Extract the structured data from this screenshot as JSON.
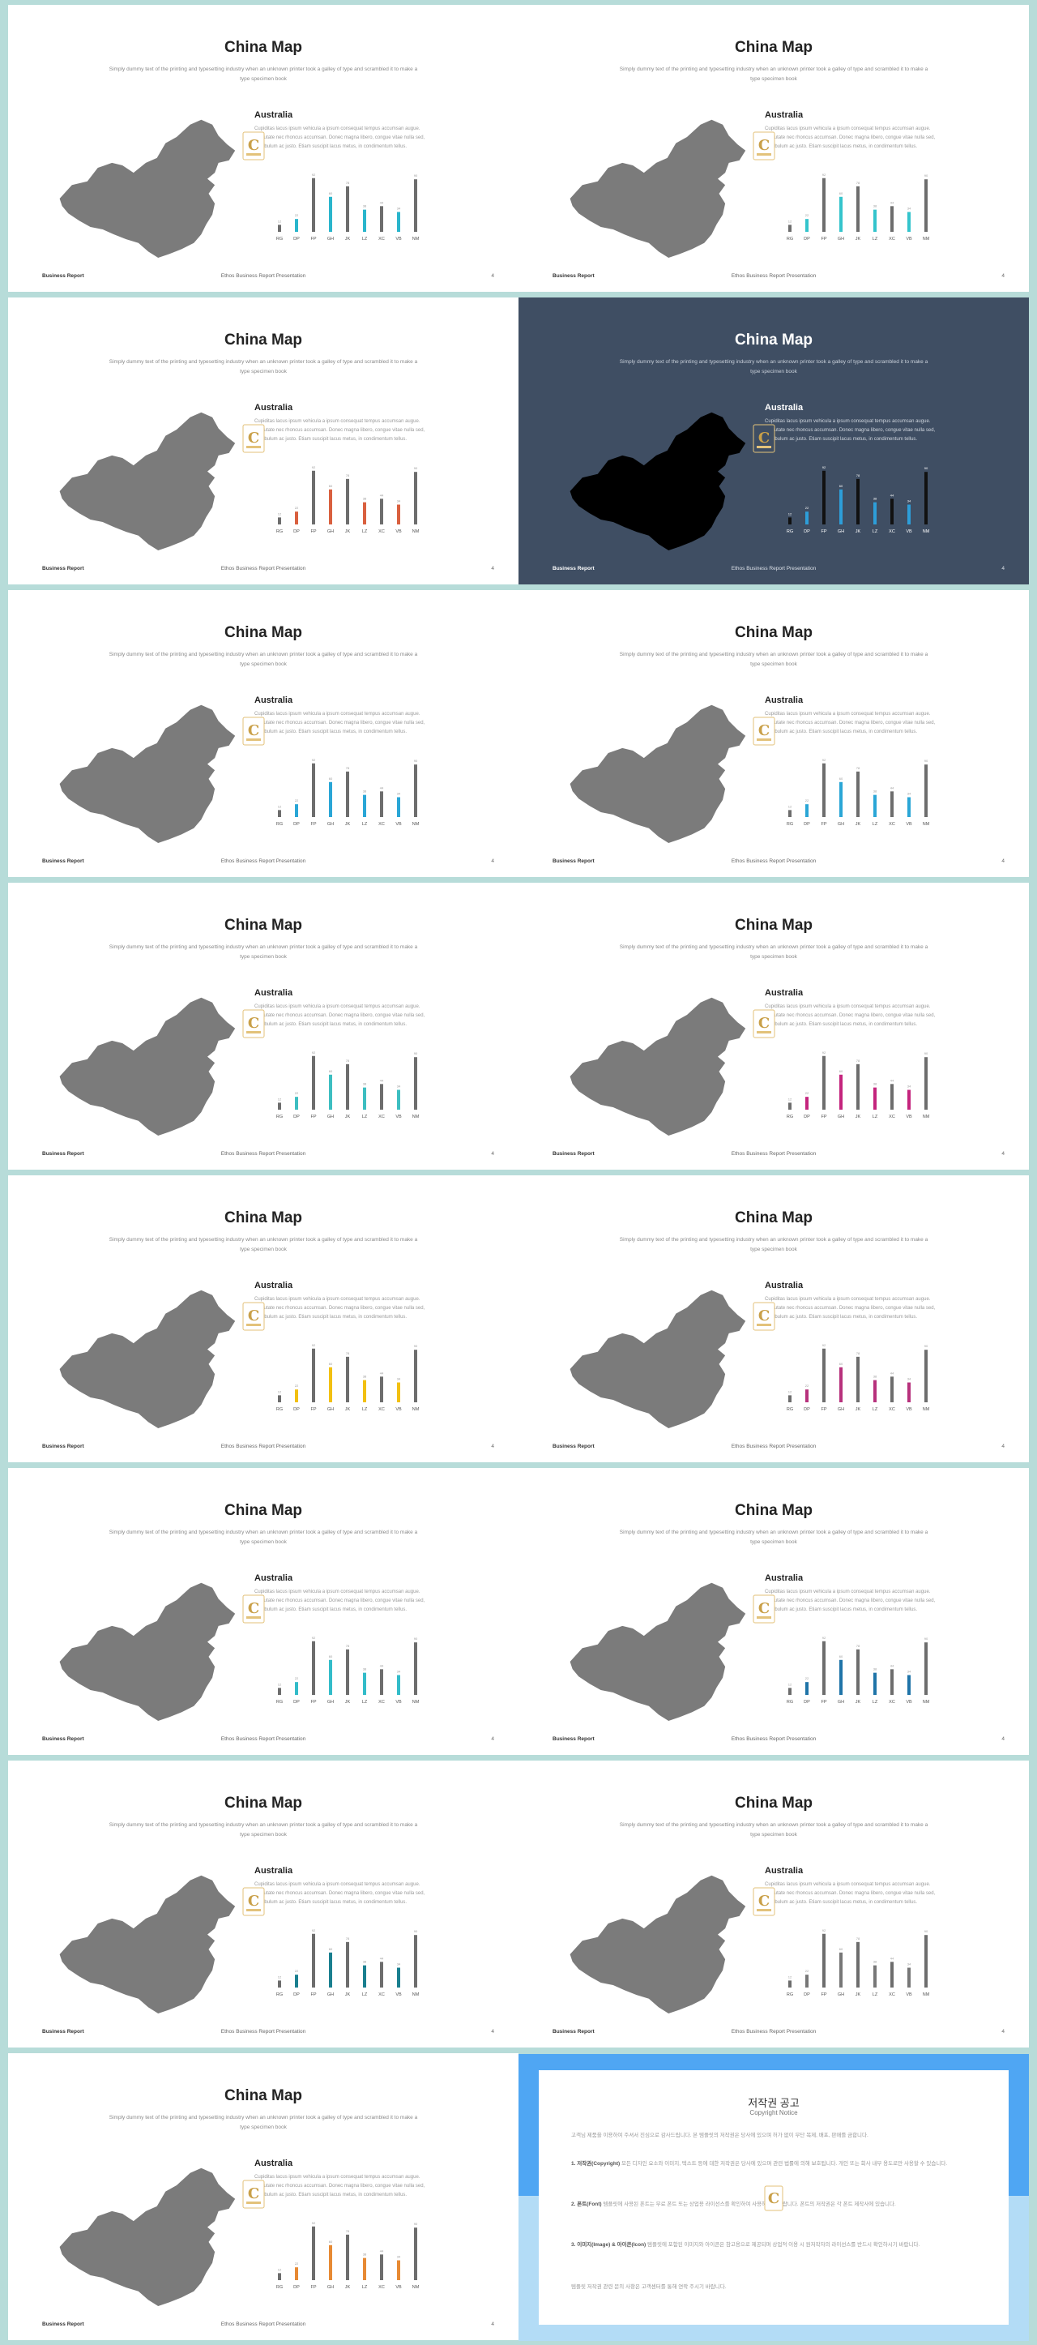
{
  "slide": {
    "title": "China Map",
    "subtitle": "Simply dummy text of the printing and typesetting industry when an unknown printer took a galley of type and scrambled it to make a type specimen book",
    "card_title": "Australia",
    "card_body": "Cupiditas lacus ipsum vehicula a ipsum consequat tempus accumsan augue. Vulputate nec rhoncus accumsan. Donec magna libero, congue vitae nulla sed, vestibulum ac justo. Etiam suscipit lacus metus, in condimentum tellus.",
    "footer_left": "Business Report",
    "footer_center": "Ethos Business Report Presentation",
    "page_number": "4"
  },
  "chart_data": {
    "type": "bar",
    "categories": [
      "RG",
      "DP",
      "FP",
      "GH",
      "JK",
      "LZ",
      "XC",
      "VB",
      "NM"
    ],
    "values": [
      12,
      22,
      92,
      60,
      78,
      38,
      44,
      34,
      90
    ],
    "accent_pattern": [
      false,
      true,
      false,
      true,
      false,
      true,
      false,
      true,
      false
    ],
    "value_labels": [
      "12",
      "22",
      "92",
      "60",
      "78",
      "38",
      "44",
      "34",
      "90"
    ]
  },
  "slides": [
    {
      "accent": "#2ab5cc",
      "dark": false
    },
    {
      "accent": "#34c4cc",
      "dark": false
    },
    {
      "accent": "#d9603f",
      "dark": false
    },
    {
      "accent": "#2d9ed9",
      "dark": true
    },
    {
      "accent": "#2aa6d6",
      "dark": false
    },
    {
      "accent": "#2aa6d6",
      "dark": false
    },
    {
      "accent": "#3dbec1",
      "dark": false
    },
    {
      "accent": "#c4247d",
      "dark": false
    },
    {
      "accent": "#f2c012",
      "dark": false
    },
    {
      "accent": "#b7317c",
      "dark": false
    },
    {
      "accent": "#33bcc9",
      "dark": false
    },
    {
      "accent": "#1f74a8",
      "dark": false
    },
    {
      "accent": "#1a7f8f",
      "dark": false
    },
    {
      "accent": "#777777",
      "dark": false
    },
    {
      "accent": "#e78a34",
      "dark": false
    }
  ],
  "copyright": {
    "title": "저작권 공고",
    "subtitle": "Copyright Notice",
    "p1": "고객님 제품을 이용하여 주셔서 진심으로 감사드립니다. 본 템플릿의 저작권은 당사에 있으며 허가 없이 무단 복제, 배포, 판매를 금합니다.",
    "p2_head": "1. 저작권(Copyright)",
    "p2": "모든 디자인 요소와 이미지, 텍스트 등에 대한 저작권은 당사에 있으며 관련 법률에 의해 보호됩니다. 개인 또는 회사 내부 용도로만 사용할 수 있습니다.",
    "p3_head": "2. 폰트(Font)",
    "p3": "템플릿에 사용된 폰트는 무료 폰트 또는 상업용 라이선스를 확인하여 사용하시기 바랍니다. 폰트의 저작권은 각 폰트 제작사에 있습니다.",
    "p4_head": "3. 이미지(Image) & 아이콘(Icon)",
    "p4": "템플릿에 포함된 이미지와 아이콘은 참고용으로 제공되며 상업적 이용 시 원저작자의 라이선스를 반드시 확인하시기 바랍니다.",
    "p5": "템플릿 저작권 관련 문의 사항은 고객센터를 통해 연락 주시기 바랍니다."
  }
}
